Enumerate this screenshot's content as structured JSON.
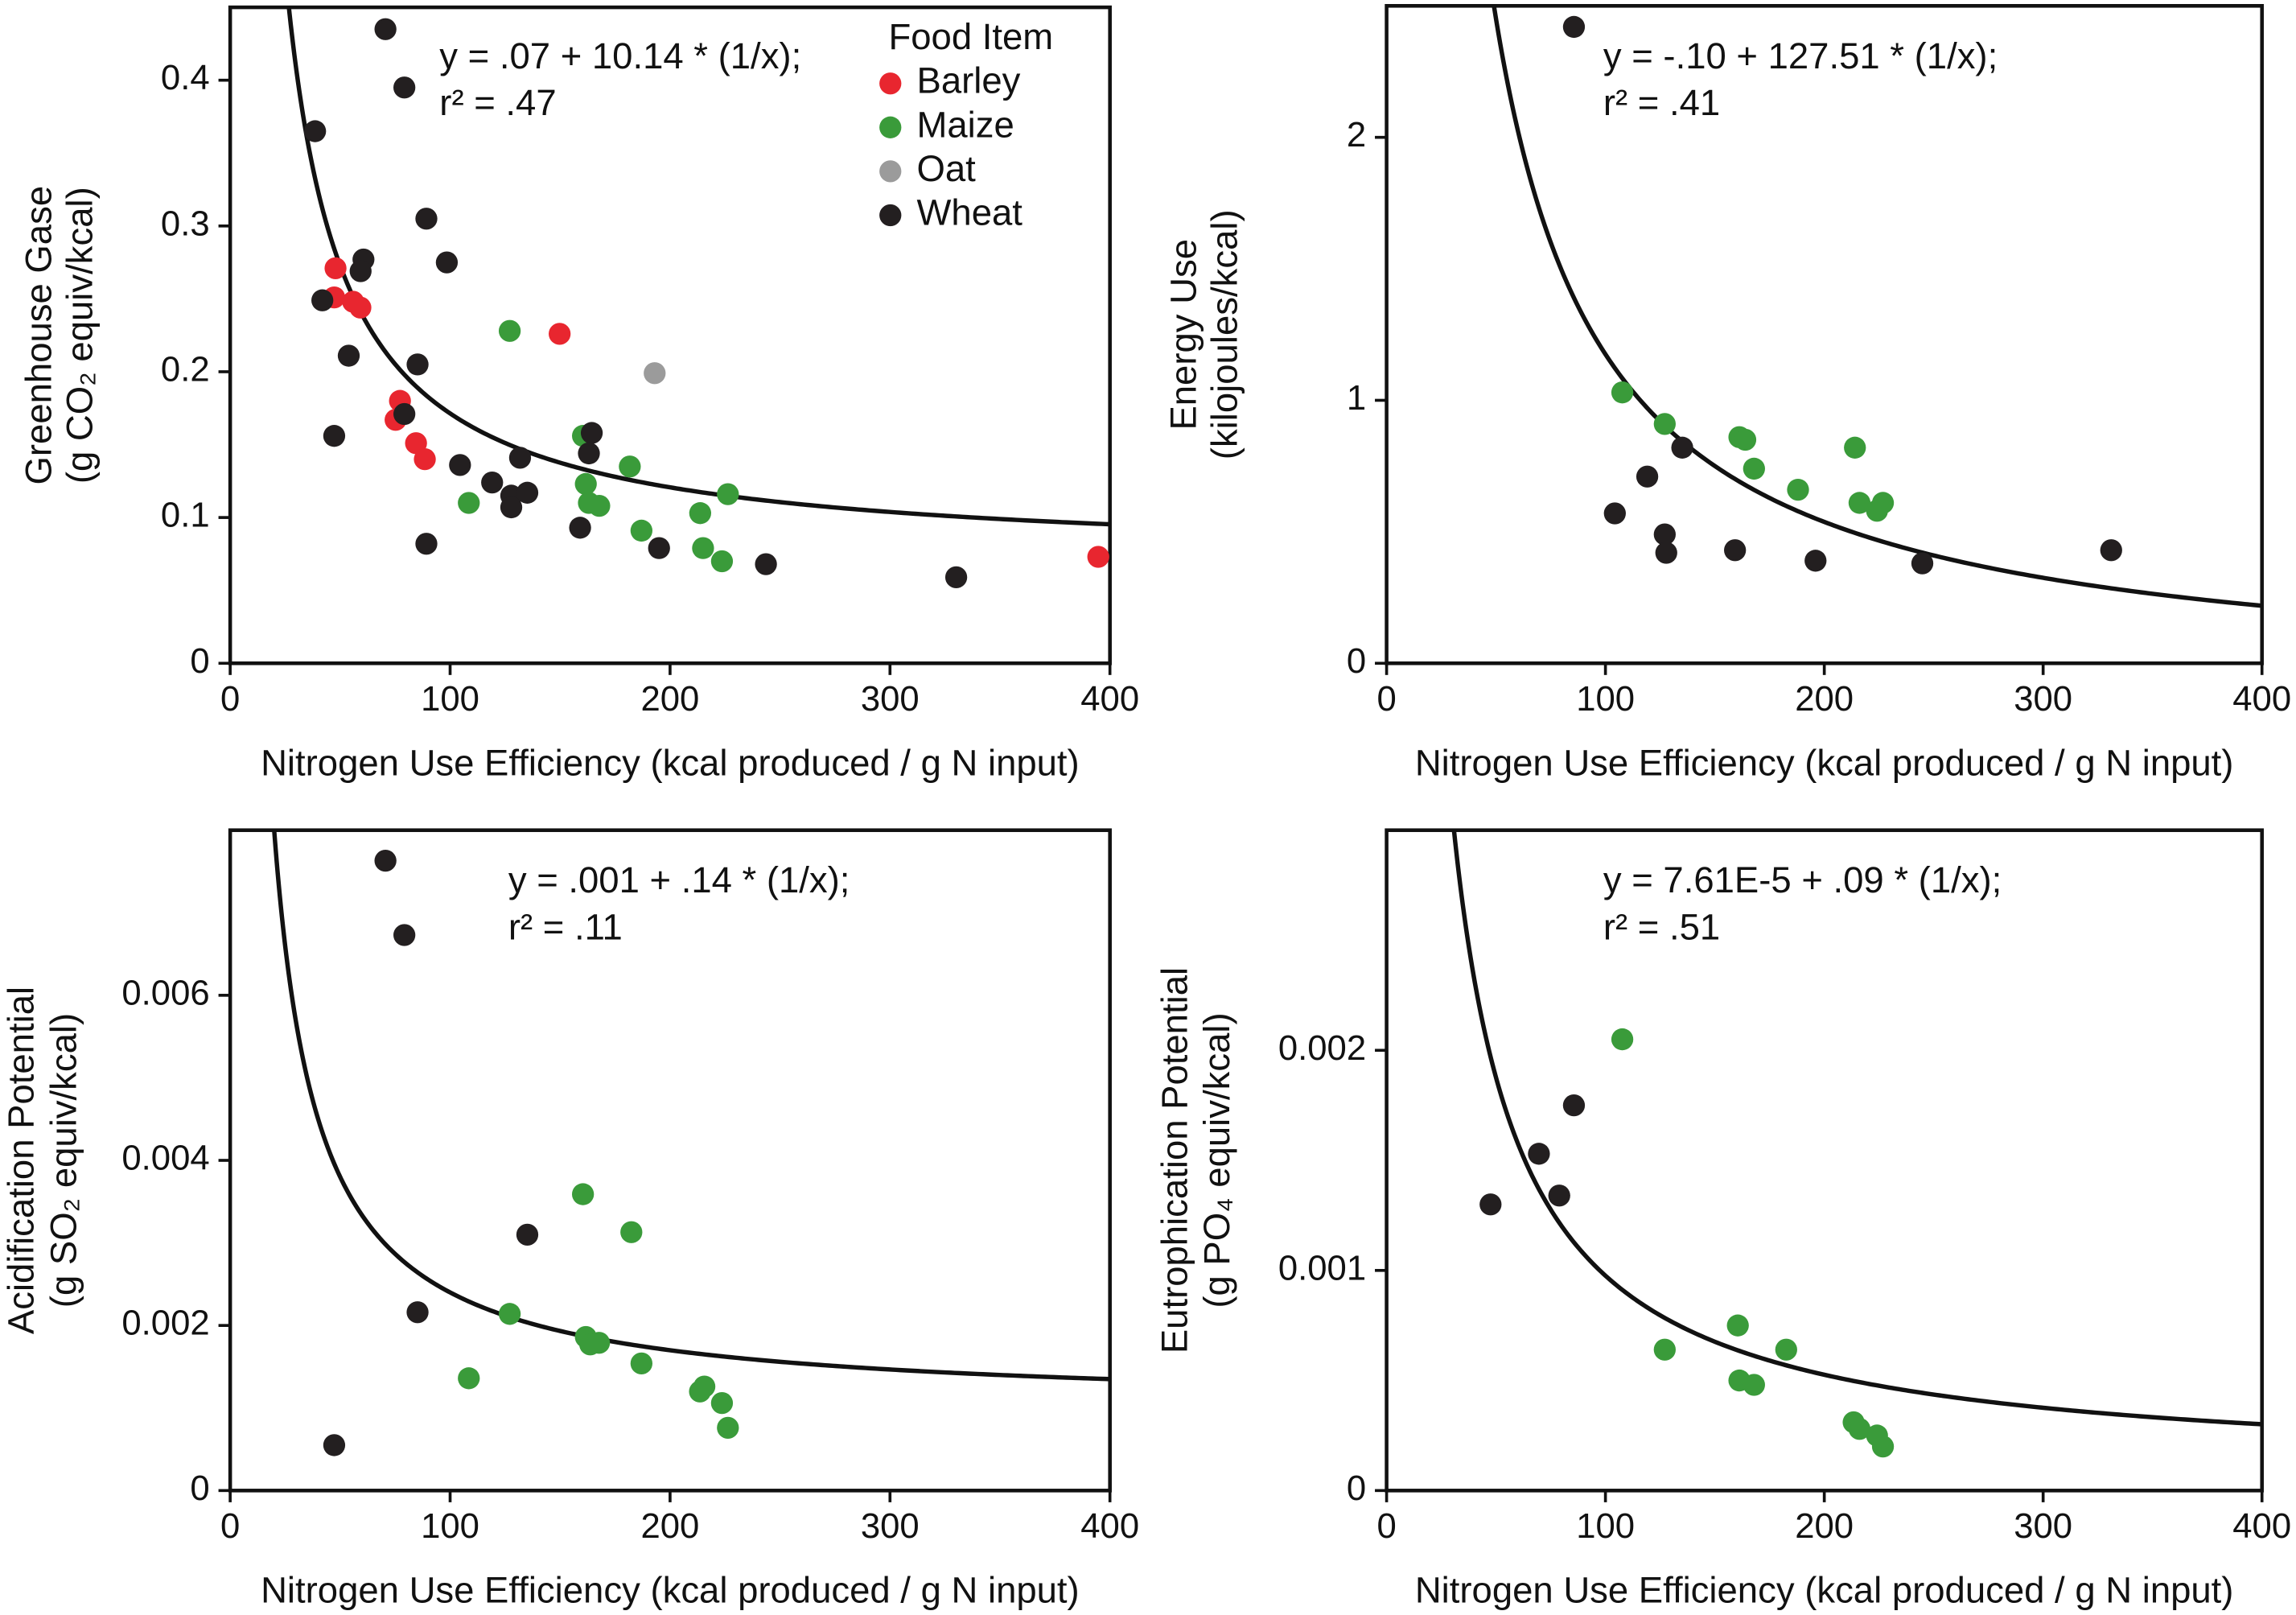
{
  "chart_data": [
    {
      "type": "scatter",
      "xlabel": "Nitrogen Use Efficiency (kcal produced / g N input)",
      "ylabel": [
        "Greenhouse Gase",
        "(g CO₂ equiv/kcal)"
      ],
      "annotations": [
        "y = .07 + 10.14 * (1/x);",
        "r² = .47"
      ],
      "xlim": [
        0,
        400
      ],
      "xticks": [
        0,
        100,
        200,
        300,
        400
      ],
      "ylim": [
        0,
        0.45
      ],
      "yticks": [
        0,
        0.1,
        0.2,
        0.3,
        0.4
      ],
      "legend_title": "Food Item",
      "legend_loc": "upper right",
      "series": [
        {
          "name": "Barley",
          "color": "#e8262f",
          "x": [
            47.9,
            47.3,
            55.9,
            59.2,
            149.8,
            77.2,
            75.2,
            84.5,
            88.5,
            394.7
          ],
          "values": [
            0.271,
            0.251,
            0.248,
            0.244,
            0.226,
            0.18,
            0.167,
            0.151,
            0.14,
            0.073
          ]
        },
        {
          "name": "Maize",
          "color": "#3a9b3a",
          "x": [
            127.1,
            160.4,
            181.7,
            161.7,
            163.1,
            167.8,
            108.5,
            226.3,
            213.7,
            187,
            215,
            223.6
          ],
          "values": [
            0.228,
            0.156,
            0.135,
            0.123,
            0.11,
            0.108,
            0.11,
            0.116,
            0.103,
            0.091,
            0.079,
            0.07
          ]
        },
        {
          "name": "Oat",
          "color": "#9b9b9b",
          "x": [
            193
          ],
          "values": [
            0.199
          ]
        },
        {
          "name": "Wheat",
          "color": "#231f20",
          "x": [
            70.6,
            79.2,
            38.6,
            89.2,
            98.5,
            60.6,
            59.3,
            41.9,
            53.9,
            85.2,
            79.2,
            47.3,
            164.4,
            163.1,
            104.5,
            131.8,
            119.1,
            127.8,
            135.1,
            127.8,
            159.1,
            89.2,
            195,
            243.6,
            330.1
          ],
          "values": [
            0.435,
            0.395,
            0.365,
            0.305,
            0.275,
            0.277,
            0.269,
            0.249,
            0.211,
            0.205,
            0.171,
            0.156,
            0.158,
            0.144,
            0.136,
            0.141,
            0.124,
            0.115,
            0.117,
            0.107,
            0.093,
            0.082,
            0.079,
            0.068,
            0.059
          ]
        }
      ]
    },
    {
      "type": "scatter",
      "xlabel": "Nitrogen Use Efficiency (kcal produced / g N input)",
      "ylabel": [
        "Energy Use",
        "(kilojoules/kcal)"
      ],
      "annotations": [
        "y = -.10 + 127.51 * (1/x);",
        "r² = .41"
      ],
      "xlim": [
        0,
        400
      ],
      "xticks": [
        0,
        100,
        200,
        300,
        400
      ],
      "ylim": [
        0,
        2.5
      ],
      "yticks": [
        0,
        1,
        2
      ],
      "series": [
        {
          "color": "#3a9b3a",
          "x": [
            107.7,
            127.1,
            161.2,
            163.9,
            167.9,
            188,
            214,
            216.1,
            224.1,
            226.8
          ],
          "values": [
            1.03,
            0.91,
            0.86,
            0.85,
            0.74,
            0.66,
            0.82,
            0.61,
            0.58,
            0.61
          ]
        },
        {
          "color": "#231f20",
          "x": [
            85.6,
            119.1,
            135.1,
            104.3,
            127.1,
            127.8,
            159.2,
            196,
            244.8,
            331.1
          ],
          "values": [
            2.42,
            0.71,
            0.82,
            0.57,
            0.49,
            0.42,
            0.43,
            0.39,
            0.38,
            0.43
          ]
        }
      ]
    },
    {
      "type": "scatter",
      "xlabel": "Nitrogen Use Efficiency (kcal produced / g N input)",
      "ylabel": [
        "Acidification Potential",
        "(g SO₂ equiv/kcal)"
      ],
      "annotations": [
        "y = .001 + .14 * (1/x);",
        "r² = .11"
      ],
      "xlim": [
        0,
        400
      ],
      "xticks": [
        0,
        100,
        200,
        300,
        400
      ],
      "ylim": [
        0,
        0.008
      ],
      "yticks": [
        0,
        0.002,
        0.004,
        0.006
      ],
      "series": [
        {
          "color": "#3a9b3a",
          "x": [
            160.4,
            182.4,
            127.1,
            161.7,
            163.7,
            167.7,
            187,
            108.5,
            213.6,
            215.6,
            223.6,
            226.3
          ],
          "values": [
            0.00359,
            0.00313,
            0.00214,
            0.00186,
            0.00177,
            0.00179,
            0.00154,
            0.00136,
            0.0012,
            0.00126,
            0.00106,
            0.00076
          ]
        },
        {
          "color": "#231f20",
          "x": [
            70.6,
            79.2,
            135.1,
            85.2,
            47.3
          ],
          "values": [
            0.00763,
            0.00673,
            0.0031,
            0.00216,
            0.00055
          ]
        }
      ]
    },
    {
      "type": "scatter",
      "xlabel": "Nitrogen Use Efficiency (kcal produced / g N input)",
      "ylabel": [
        "Eutrophication Potential",
        "(g PO₄ equiv/kcal)"
      ],
      "annotations": [
        "y = 7.61E-5 + .09 * (1/x);",
        "r² = .51"
      ],
      "xlim": [
        0,
        400
      ],
      "xticks": [
        0,
        100,
        200,
        300,
        400
      ],
      "ylim": [
        0,
        0.003
      ],
      "yticks": [
        0,
        0.001,
        0.002
      ],
      "series": [
        {
          "color": "#3a9b3a",
          "x": [
            107.7,
            160.5,
            182.6,
            127.1,
            161.2,
            167.9,
            213.4,
            216.1,
            224.1,
            226.8
          ],
          "values": [
            0.00205,
            0.00075,
            0.00064,
            0.00064,
            0.0005,
            0.00048,
            0.00031,
            0.00028,
            0.00025,
            0.0002
          ]
        },
        {
          "color": "#231f20",
          "x": [
            47.5,
            69.6,
            78.9,
            85.6
          ],
          "values": [
            0.0013,
            0.00153,
            0.00134,
            0.00175
          ]
        }
      ]
    }
  ]
}
